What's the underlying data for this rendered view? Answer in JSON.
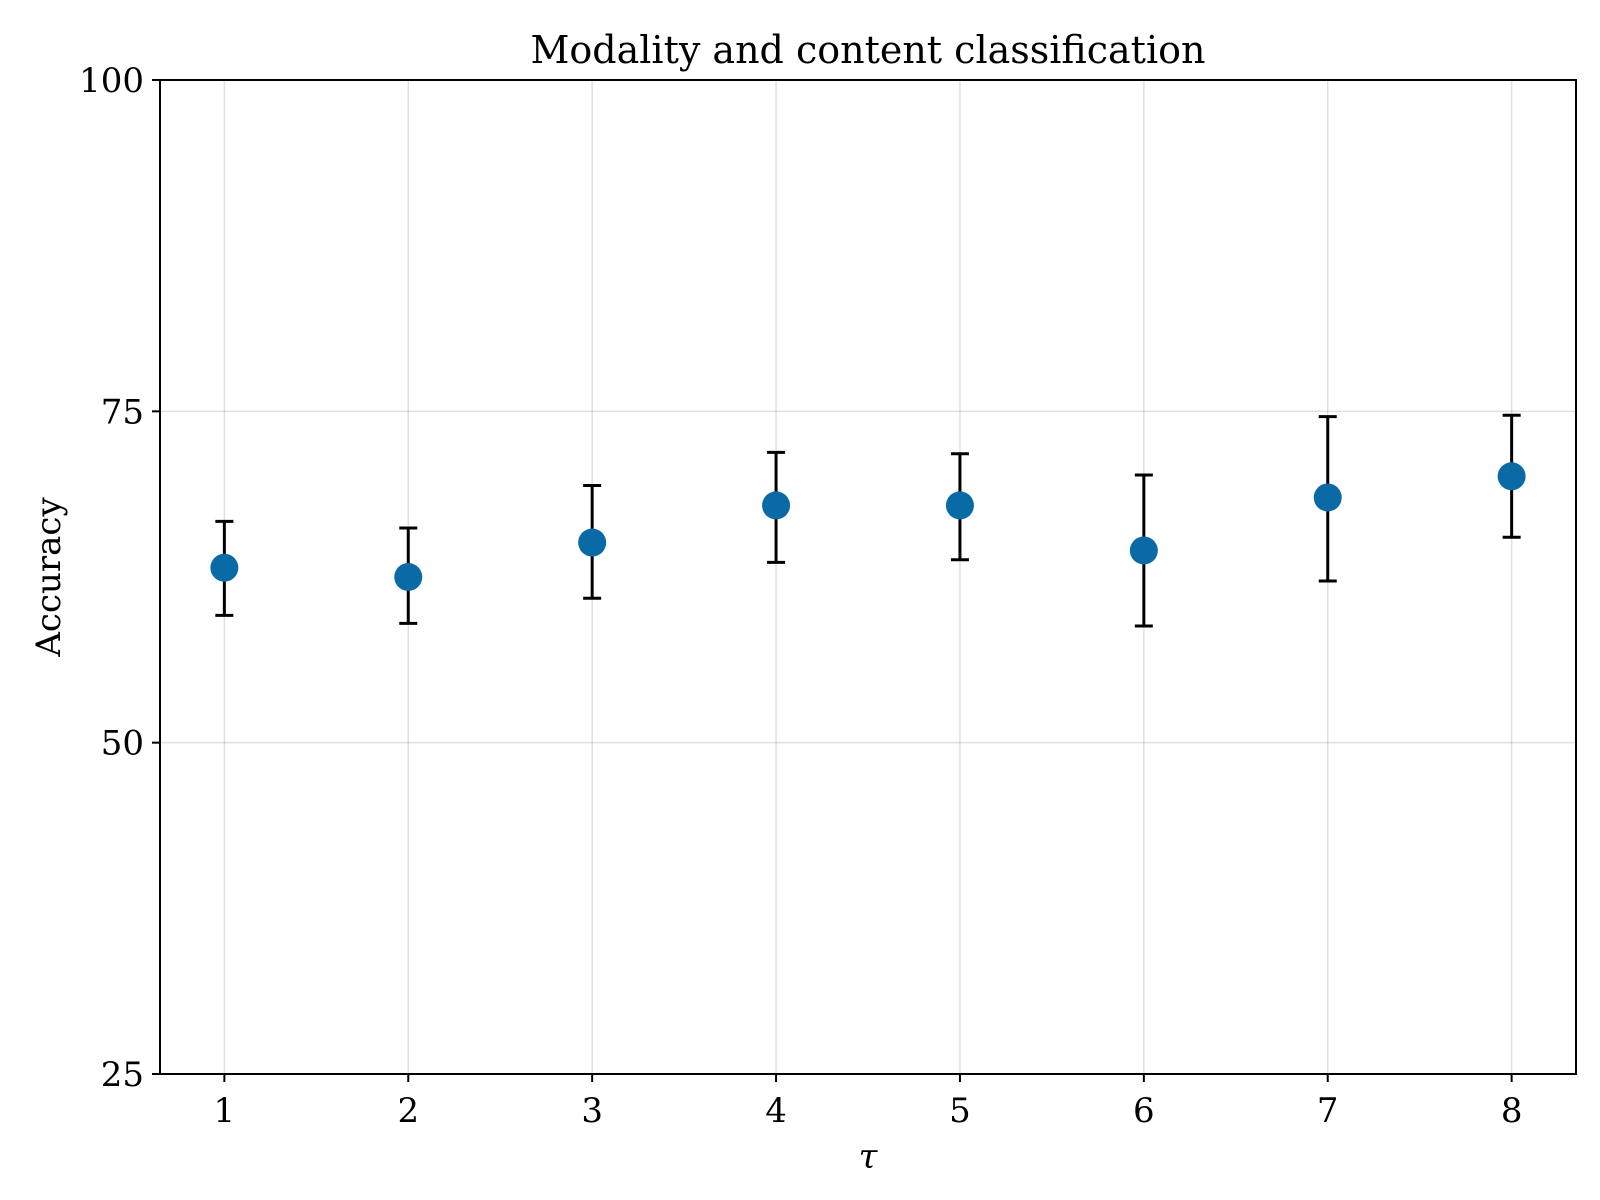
{
  "chart_data": {
    "type": "scatter",
    "title": "Modality and content classification",
    "xlabel": "τ",
    "ylabel": "Accuracy",
    "x_ticks": [
      1,
      2,
      3,
      4,
      5,
      6,
      7,
      8
    ],
    "y_ticks": [
      25,
      50,
      75,
      100
    ],
    "xlim": [
      0.65,
      8.35
    ],
    "ylim": [
      25,
      100
    ],
    "grid": true,
    "marker_color": "#0a6aa6",
    "error_bar_color": "#000000",
    "series": [
      {
        "x": [
          1,
          2,
          3,
          4,
          5,
          6,
          7,
          8
        ],
        "y": [
          63.2,
          62.5,
          65.1,
          67.9,
          67.9,
          64.5,
          68.5,
          70.1
        ],
        "err_low": [
          59.6,
          59.0,
          60.9,
          63.6,
          63.8,
          58.8,
          62.2,
          65.5
        ],
        "err_high": [
          66.7,
          66.2,
          69.4,
          71.9,
          71.8,
          70.2,
          74.6,
          74.7
        ]
      }
    ]
  }
}
